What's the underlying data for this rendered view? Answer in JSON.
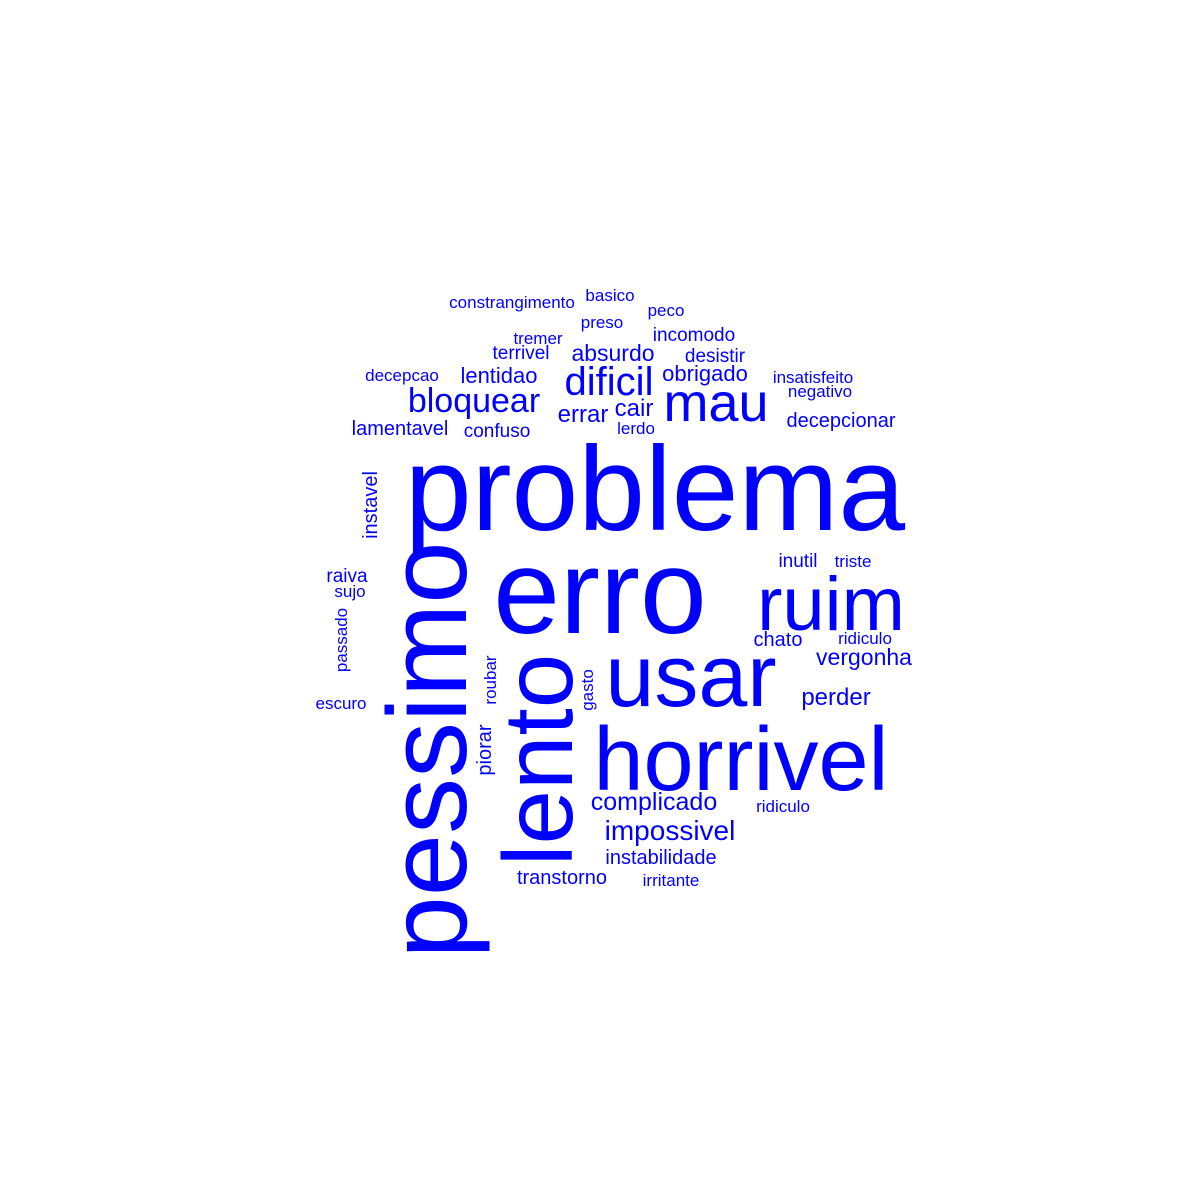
{
  "color": "#0000ff",
  "words": [
    "problema",
    "erro",
    "pessimo",
    "lento",
    "usar",
    "horrivel",
    "ruim",
    "mau",
    "dificil",
    "bloquear",
    "absurdo",
    "lentidao",
    "errar",
    "cair",
    "obrigado",
    "impossivel",
    "complicado",
    "vergonha",
    "perder",
    "instabilidade",
    "transtorno",
    "constrangimento",
    "basico",
    "peco",
    "preso",
    "tremer",
    "incomodo",
    "terrivel",
    "desistir",
    "decepcao",
    "insatisfeito",
    "negativo",
    "lamentavel",
    "confuso",
    "lerdo",
    "decepcionar",
    "instavel",
    "raiva",
    "sujo",
    "passado",
    "escuro",
    "roubar",
    "piorar",
    "gasto",
    "inutil",
    "triste",
    "chato",
    "ridiculo",
    "ridiculo",
    "irritante"
  ]
}
